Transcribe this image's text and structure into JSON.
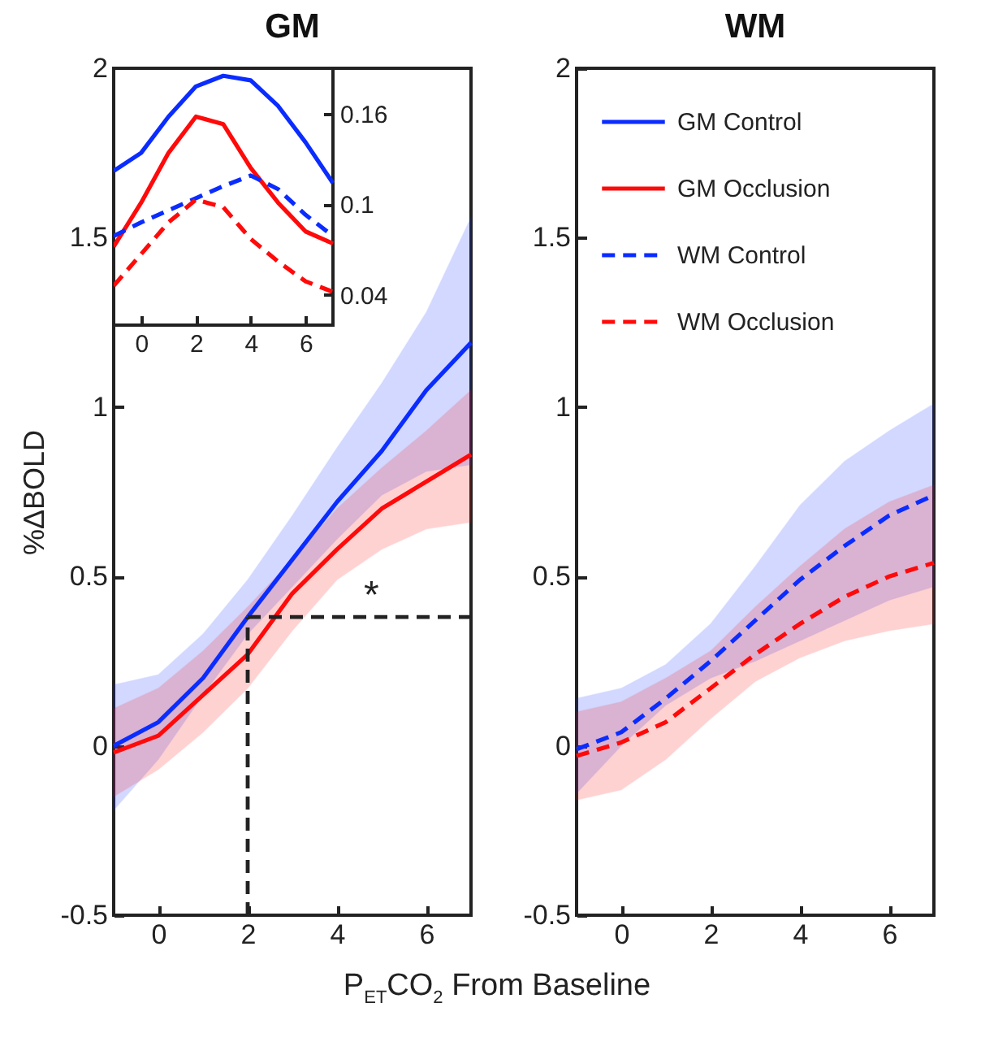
{
  "chart_data": [
    {
      "type": "line",
      "title": "GM",
      "xlabel": "P$_{ET}$CO$_{2}$ From Baseline",
      "ylabel": "%ΔBOLD",
      "x": [
        -1,
        0,
        1,
        2,
        3,
        4,
        5,
        6,
        7
      ],
      "xlim": [
        -1,
        7
      ],
      "xticks": [
        0,
        2,
        4,
        6
      ],
      "ylim": [
        -0.5,
        2
      ],
      "yticks": [
        -0.5,
        0,
        0.5,
        1,
        1.5,
        2
      ],
      "grid": false,
      "marker": "none",
      "series": [
        {
          "name": "GM Control",
          "color": "#0a2cff",
          "line_style": "solid",
          "values": [
            0,
            0.07,
            0.2,
            0.38,
            0.55,
            0.72,
            0.87,
            1.05,
            1.19
          ],
          "lower": [
            -0.19,
            -0.04,
            0.15,
            0.33,
            0.47,
            0.61,
            0.74,
            0.81,
            0.83
          ],
          "upper": [
            0.18,
            0.21,
            0.33,
            0.49,
            0.68,
            0.88,
            1.07,
            1.28,
            1.56
          ]
        },
        {
          "name": "GM Occlusion",
          "color": "#ff0a0a",
          "line_style": "solid",
          "values": [
            -0.02,
            0.03,
            0.15,
            0.27,
            0.45,
            0.58,
            0.7,
            0.78,
            0.86
          ],
          "lower": [
            -0.15,
            -0.07,
            0.04,
            0.17,
            0.34,
            0.49,
            0.58,
            0.64,
            0.66
          ],
          "upper": [
            0.11,
            0.17,
            0.28,
            0.41,
            0.55,
            0.7,
            0.82,
            0.93,
            1.05
          ]
        }
      ],
      "ref_lines": [
        {
          "axis": "x",
          "value": 2,
          "color": "#222222",
          "line_style": "dashed"
        },
        {
          "axis": "y",
          "value": 0.38,
          "color": "#222222",
          "line_style": "dashed"
        }
      ],
      "annotations": [
        "*"
      ]
    },
    {
      "type": "line",
      "x": [
        -1,
        0,
        1,
        2,
        3,
        4,
        5,
        6,
        7
      ],
      "xlim": [
        -1,
        7
      ],
      "xticks": [
        0,
        2,
        4,
        6
      ],
      "ylim": [
        0.02,
        0.19
      ],
      "yticks": [
        0.04,
        0.1,
        0.16
      ],
      "grid": false,
      "marker": "none",
      "series": [
        {
          "color": "#0a2cff",
          "line_style": "solid",
          "values": [
            0.122,
            0.134,
            0.158,
            0.178,
            0.185,
            0.182,
            0.165,
            0.141,
            0.114
          ]
        },
        {
          "color": "#ff0a0a",
          "line_style": "solid",
          "values": [
            0.072,
            0.101,
            0.134,
            0.158,
            0.153,
            0.124,
            0.101,
            0.082,
            0.074
          ]
        },
        {
          "color": "#0a2cff",
          "line_style": "dashed",
          "values": [
            0.079,
            0.088,
            0.096,
            0.104,
            0.112,
            0.119,
            0.11,
            0.093,
            0.079
          ]
        },
        {
          "color": "#ff0a0a",
          "line_style": "dashed",
          "values": [
            0.046,
            0.067,
            0.088,
            0.103,
            0.098,
            0.077,
            0.062,
            0.049,
            0.042
          ]
        }
      ]
    },
    {
      "type": "line",
      "title": "WM",
      "x": [
        -1,
        0,
        1,
        2,
        3,
        4,
        5,
        6,
        7
      ],
      "xlim": [
        -1,
        7
      ],
      "xticks": [
        0,
        2,
        4,
        6
      ],
      "ylim": [
        -0.5,
        2
      ],
      "yticks": [
        -0.5,
        0,
        0.5,
        1,
        1.5,
        2
      ],
      "grid": false,
      "marker": "none",
      "legend": "top left",
      "series": [
        {
          "name": "WM Control",
          "color": "#0a2cff",
          "line_style": "dashed",
          "values": [
            -0.01,
            0.04,
            0.14,
            0.25,
            0.37,
            0.49,
            0.59,
            0.68,
            0.74
          ],
          "lower": [
            -0.14,
            0,
            0.12,
            0.2,
            0.25,
            0.31,
            0.37,
            0.43,
            0.47
          ],
          "upper": [
            0.14,
            0.17,
            0.24,
            0.36,
            0.53,
            0.71,
            0.84,
            0.93,
            1.01
          ]
        },
        {
          "name": "WM Occlusion",
          "color": "#ff0a0a",
          "line_style": "dashed",
          "values": [
            -0.03,
            0.01,
            0.07,
            0.17,
            0.27,
            0.36,
            0.44,
            0.5,
            0.54
          ],
          "lower": [
            -0.16,
            -0.13,
            -0.04,
            0.08,
            0.19,
            0.26,
            0.31,
            0.34,
            0.36
          ],
          "upper": [
            0.1,
            0.13,
            0.2,
            0.28,
            0.41,
            0.53,
            0.64,
            0.72,
            0.77
          ]
        }
      ]
    }
  ]
}
